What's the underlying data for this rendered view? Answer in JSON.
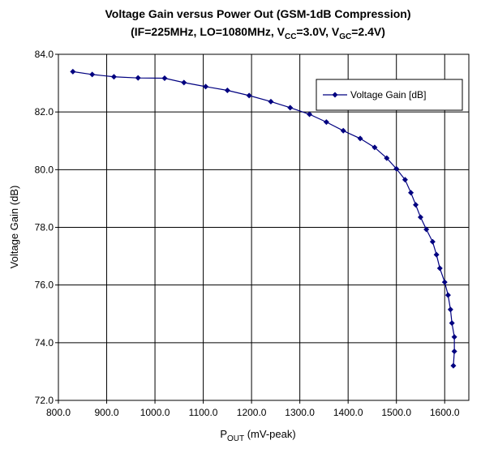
{
  "chart_data": {
    "type": "line",
    "title": "Voltage Gain versus Power Out (GSM-1dB Compression)",
    "subtitle_parts": [
      "(IF=225MHz, LO=1080MHz, V",
      "CC",
      "=3.0V, V",
      "GC",
      "=2.4V)"
    ],
    "x_label_parts": [
      "P",
      "OUT",
      " (mV-peak)"
    ],
    "y_label": "Voltage Gain (dB)",
    "xlim": [
      800,
      1650
    ],
    "ylim": [
      72,
      84
    ],
    "xticks": [
      {
        "value": 800,
        "label": "800.0"
      },
      {
        "value": 900,
        "label": "900.0"
      },
      {
        "value": 1000,
        "label": "1000.0"
      },
      {
        "value": 1100,
        "label": "1100.0"
      },
      {
        "value": 1200,
        "label": "1200.0"
      },
      {
        "value": 1300,
        "label": "1300.0"
      },
      {
        "value": 1400,
        "label": "1400.0"
      },
      {
        "value": 1500,
        "label": "1500.0"
      },
      {
        "value": 1600,
        "label": "1600.0"
      }
    ],
    "yticks": [
      {
        "value": 72,
        "label": "72.0"
      },
      {
        "value": 74,
        "label": "74.0"
      },
      {
        "value": 76,
        "label": "76.0"
      },
      {
        "value": 78,
        "label": "78.0"
      },
      {
        "value": 80,
        "label": "80.0"
      },
      {
        "value": 82,
        "label": "82.0"
      },
      {
        "value": 84,
        "label": "84.0"
      }
    ],
    "grid": true,
    "legend": "upper right",
    "series": [
      {
        "name": "Voltage Gain [dB]",
        "color": "#000080",
        "x": [
          830,
          870,
          915,
          965,
          1020,
          1060,
          1105,
          1150,
          1195,
          1240,
          1280,
          1320,
          1355,
          1390,
          1425,
          1455,
          1480,
          1500,
          1518,
          1530,
          1540,
          1550,
          1562,
          1575,
          1583,
          1590,
          1600,
          1607,
          1612,
          1615,
          1620,
          1620,
          1618
        ],
        "values": [
          83.4,
          83.3,
          83.22,
          83.18,
          83.17,
          83.02,
          82.88,
          82.75,
          82.57,
          82.36,
          82.15,
          81.92,
          81.65,
          81.35,
          81.08,
          80.77,
          80.4,
          80.03,
          79.65,
          79.2,
          78.78,
          78.35,
          77.93,
          77.5,
          77.05,
          76.58,
          76.1,
          75.65,
          75.15,
          74.68,
          74.2,
          73.7,
          73.2
        ]
      }
    ]
  }
}
